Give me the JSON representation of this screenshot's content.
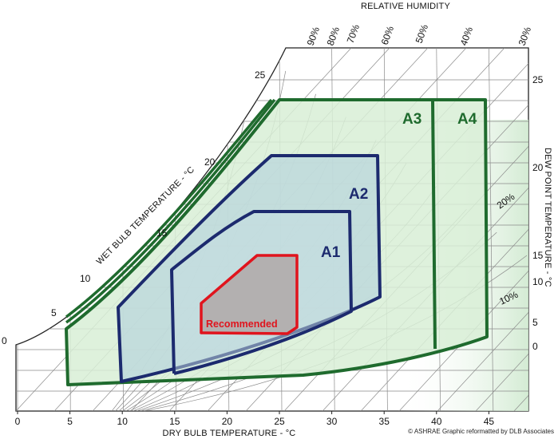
{
  "titles": {
    "top": "RELATIVE HUMIDITY",
    "bottom": "DRY BULB TEMPERATURE - °C",
    "left": "WET BULB TEMPERATURE - °C",
    "right": "DEW POINT TEMPERATURE - °C",
    "credit": "© ASHRAE Graphic reformatted by DLB Associates"
  },
  "dry_bulb_ticks": [
    "0",
    "5",
    "10",
    "15",
    "20",
    "25",
    "30",
    "35",
    "40",
    "45"
  ],
  "wet_bulb_ticks": [
    "0",
    "5",
    "10",
    "15",
    "20",
    "25"
  ],
  "dew_point_ticks": [
    "25",
    "20",
    "15",
    "10",
    "5",
    "0"
  ],
  "rh_top_ticks": [
    "90%",
    "80%",
    "70%",
    "60%",
    "50%",
    "40%",
    "30%"
  ],
  "rh_inner_ticks": [
    "20%",
    "10%"
  ],
  "zones": {
    "a4": "A4",
    "a3": "A3",
    "a2": "A2",
    "a1": "A1",
    "recommended": "Recommended"
  },
  "colors": {
    "green": "#1f6b2e",
    "navy": "#1c2a6e",
    "red": "#e0141d",
    "fill_green": "#d8efd6",
    "fill_blue": "#b9d6dc",
    "fill_gray": "#b3b0b0"
  }
}
